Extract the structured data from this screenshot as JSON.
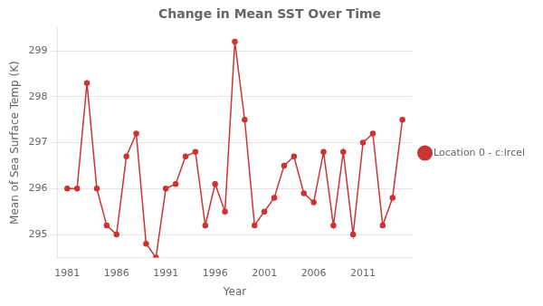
{
  "chart_data": {
    "type": "line",
    "title": "Change in Mean SST Over Time",
    "xlabel": "Year",
    "ylabel": "Mean of Sea Surface Temp (K)",
    "x": [
      1981,
      1982,
      1983,
      1984,
      1985,
      1986,
      1987,
      1988,
      1989,
      1990,
      1991,
      1992,
      1993,
      1994,
      1995,
      1996,
      1997,
      1998,
      1999,
      2000,
      2001,
      2002,
      2003,
      2004,
      2005,
      2006,
      2007,
      2008,
      2009,
      2010,
      2011,
      2012,
      2013,
      2014,
      2015
    ],
    "series": [
      {
        "name": "Location 0 - c:lrcel",
        "color": "#cc3333",
        "marker": "circle",
        "values": [
          296.0,
          296.0,
          298.3,
          296.0,
          295.2,
          295.0,
          296.7,
          297.2,
          294.8,
          294.5,
          296.0,
          296.1,
          296.7,
          296.8,
          295.2,
          296.1,
          295.5,
          299.2,
          297.5,
          295.2,
          295.5,
          295.8,
          296.5,
          296.7,
          295.9,
          295.7,
          296.8,
          295.2,
          296.8,
          295.0,
          297.0,
          297.2,
          295.2,
          295.8,
          297.5
        ]
      }
    ],
    "xlim": [
      1980,
      2016
    ],
    "xticks": [
      1981,
      1986,
      1991,
      1996,
      2001,
      2006,
      2011
    ],
    "ylim": [
      294.5,
      299.5
    ],
    "yticks": [
      295,
      296,
      297,
      298,
      299
    ],
    "grid": "y",
    "legend": "right"
  }
}
